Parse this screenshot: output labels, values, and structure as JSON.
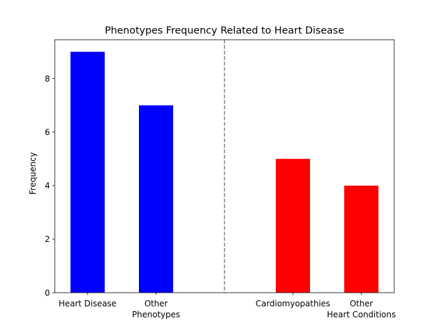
{
  "chart_data": {
    "type": "bar",
    "title": "Phenotypes Frequency Related to Heart Disease",
    "xlabel": "",
    "ylabel": "Frequency",
    "ylim": [
      0,
      9.45
    ],
    "yticks": [
      0,
      2,
      4,
      6,
      8
    ],
    "grid": false,
    "legend": "none",
    "bars": [
      {
        "label": [
          "Heart Disease"
        ],
        "value": 9,
        "color": "#0000ff"
      },
      {
        "label": [
          "Other",
          "Phenotypes"
        ],
        "value": 7,
        "color": "#0000ff"
      },
      {
        "label": [
          "Cardiomyopathies"
        ],
        "value": 5,
        "color": "#ff0000"
      },
      {
        "label": [
          "Other",
          "Heart Conditions"
        ],
        "value": 4,
        "color": "#ff0000"
      }
    ],
    "divider": {
      "style": "dashed",
      "color": "#808080"
    }
  }
}
